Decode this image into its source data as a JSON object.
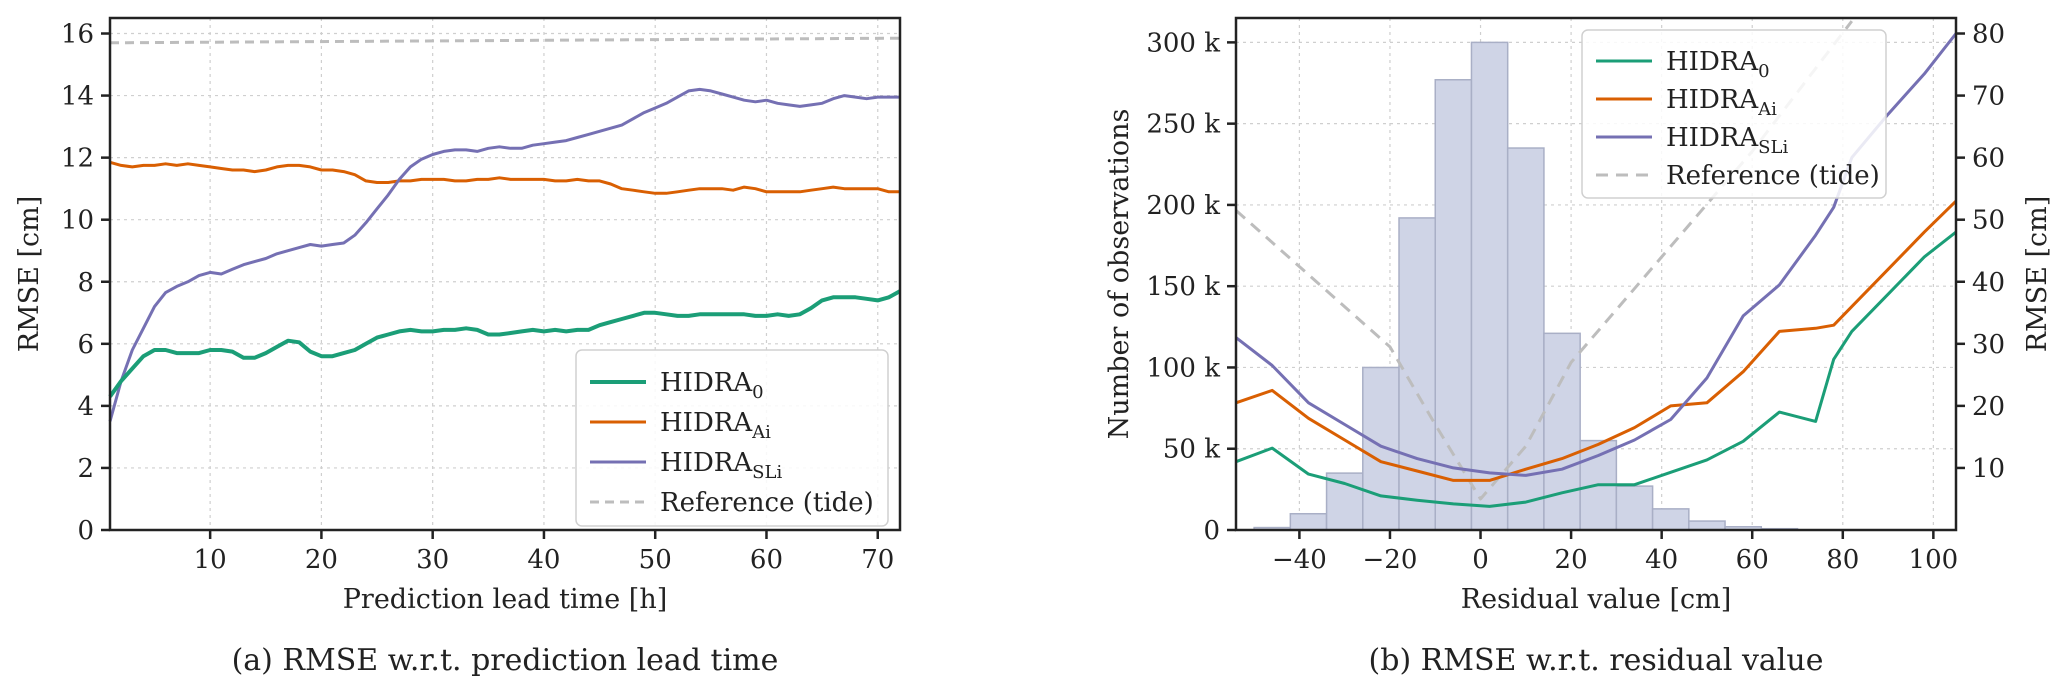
{
  "chart_data": [
    {
      "type": "line",
      "title": "",
      "caption": "(a) RMSE w.r.t. prediction lead time",
      "xlabel": "Prediction lead time [h]",
      "ylabel": "RMSE [cm]",
      "xlim": [
        1,
        72
      ],
      "ylim": [
        0,
        16.5
      ],
      "xticks": [
        10,
        20,
        30,
        40,
        50,
        60,
        70
      ],
      "yticks": [
        0,
        2,
        4,
        6,
        8,
        10,
        12,
        14,
        16
      ],
      "grid": true,
      "legend_position": "lower-right",
      "series": [
        {
          "name": "HIDRA",
          "sub": "0",
          "color": "#1b9e77",
          "width": 4,
          "dash": "",
          "x": [
            1,
            2,
            3,
            4,
            5,
            6,
            7,
            8,
            9,
            10,
            11,
            12,
            13,
            14,
            15,
            16,
            17,
            18,
            19,
            20,
            21,
            22,
            23,
            24,
            25,
            26,
            27,
            28,
            29,
            30,
            31,
            32,
            33,
            34,
            35,
            36,
            37,
            38,
            39,
            40,
            41,
            42,
            43,
            44,
            45,
            46,
            47,
            48,
            49,
            50,
            51,
            52,
            53,
            54,
            55,
            56,
            57,
            58,
            59,
            60,
            61,
            62,
            63,
            64,
            65,
            66,
            67,
            68,
            69,
            70,
            71,
            72
          ],
          "y": [
            4.3,
            4.8,
            5.2,
            5.6,
            5.8,
            5.8,
            5.7,
            5.7,
            5.7,
            5.8,
            5.8,
            5.75,
            5.55,
            5.55,
            5.7,
            5.9,
            6.1,
            6.05,
            5.75,
            5.6,
            5.6,
            5.7,
            5.8,
            6.0,
            6.2,
            6.3,
            6.4,
            6.45,
            6.4,
            6.4,
            6.45,
            6.45,
            6.5,
            6.45,
            6.3,
            6.3,
            6.35,
            6.4,
            6.45,
            6.4,
            6.45,
            6.4,
            6.45,
            6.45,
            6.6,
            6.7,
            6.8,
            6.9,
            7.0,
            7.0,
            6.95,
            6.9,
            6.9,
            6.95,
            6.95,
            6.95,
            6.95,
            6.95,
            6.9,
            6.9,
            6.95,
            6.9,
            6.95,
            7.15,
            7.4,
            7.5,
            7.5,
            7.5,
            7.45,
            7.4,
            7.5,
            7.7
          ]
        },
        {
          "name": "HIDRA",
          "sub": "Ai",
          "color": "#d95f02",
          "width": 3,
          "dash": "",
          "x": [
            1,
            2,
            3,
            4,
            5,
            6,
            7,
            8,
            9,
            10,
            11,
            12,
            13,
            14,
            15,
            16,
            17,
            18,
            19,
            20,
            21,
            22,
            23,
            24,
            25,
            26,
            27,
            28,
            29,
            30,
            31,
            32,
            33,
            34,
            35,
            36,
            37,
            38,
            39,
            40,
            41,
            42,
            43,
            44,
            45,
            46,
            47,
            48,
            49,
            50,
            51,
            52,
            53,
            54,
            55,
            56,
            57,
            58,
            59,
            60,
            61,
            62,
            63,
            64,
            65,
            66,
            67,
            68,
            69,
            70,
            71,
            72
          ],
          "y": [
            11.85,
            11.75,
            11.7,
            11.75,
            11.75,
            11.8,
            11.75,
            11.8,
            11.75,
            11.7,
            11.65,
            11.6,
            11.6,
            11.55,
            11.6,
            11.7,
            11.75,
            11.75,
            11.7,
            11.6,
            11.6,
            11.55,
            11.45,
            11.25,
            11.2,
            11.2,
            11.25,
            11.25,
            11.3,
            11.3,
            11.3,
            11.25,
            11.25,
            11.3,
            11.3,
            11.35,
            11.3,
            11.3,
            11.3,
            11.3,
            11.25,
            11.25,
            11.3,
            11.25,
            11.25,
            11.15,
            11.0,
            10.95,
            10.9,
            10.85,
            10.85,
            10.9,
            10.95,
            11.0,
            11.0,
            11.0,
            10.95,
            11.05,
            11.0,
            10.9,
            10.9,
            10.9,
            10.9,
            10.95,
            11.0,
            11.05,
            11.0,
            11.0,
            11.0,
            11.0,
            10.9,
            10.9
          ]
        },
        {
          "name": "HIDRA",
          "sub": "SLi",
          "color": "#7570b3",
          "width": 3,
          "dash": "",
          "x": [
            1,
            2,
            3,
            4,
            5,
            6,
            7,
            8,
            9,
            10,
            11,
            12,
            13,
            14,
            15,
            16,
            17,
            18,
            19,
            20,
            21,
            22,
            23,
            24,
            25,
            26,
            27,
            28,
            29,
            30,
            31,
            32,
            33,
            34,
            35,
            36,
            37,
            38,
            39,
            40,
            41,
            42,
            43,
            44,
            45,
            46,
            47,
            48,
            49,
            50,
            51,
            52,
            53,
            54,
            55,
            56,
            57,
            58,
            59,
            60,
            61,
            62,
            63,
            64,
            65,
            66,
            67,
            68,
            69,
            70,
            71,
            72
          ],
          "y": [
            3.5,
            4.8,
            5.8,
            6.5,
            7.2,
            7.65,
            7.85,
            8.0,
            8.2,
            8.3,
            8.25,
            8.4,
            8.55,
            8.65,
            8.75,
            8.9,
            9.0,
            9.1,
            9.2,
            9.15,
            9.2,
            9.25,
            9.5,
            9.9,
            10.35,
            10.8,
            11.3,
            11.7,
            11.95,
            12.1,
            12.2,
            12.25,
            12.25,
            12.2,
            12.3,
            12.35,
            12.3,
            12.3,
            12.4,
            12.45,
            12.5,
            12.55,
            12.65,
            12.75,
            12.85,
            12.95,
            13.05,
            13.25,
            13.45,
            13.6,
            13.75,
            13.95,
            14.15,
            14.2,
            14.15,
            14.05,
            13.95,
            13.85,
            13.8,
            13.85,
            13.75,
            13.7,
            13.65,
            13.7,
            13.75,
            13.9,
            14.0,
            13.95,
            13.9,
            13.95,
            13.95,
            13.95
          ]
        },
        {
          "name": "Reference (tide)",
          "sub": "",
          "color": "#bdbdbd",
          "width": 3,
          "dash": "9 6",
          "x": [
            1,
            72
          ],
          "y": [
            15.7,
            15.85
          ]
        }
      ]
    },
    {
      "type": "bar+line",
      "title": "",
      "caption": "(b) RMSE w.r.t. residual value",
      "xlabel": "Residual value [cm]",
      "ylabel_left": "Number of observations",
      "ylabel_right": "RMSE [cm]",
      "xlim": [
        -54,
        105
      ],
      "ylim_left": [
        0,
        315000
      ],
      "ylim_right": [
        0,
        82.5
      ],
      "xticks": [
        -40,
        -20,
        0,
        20,
        40,
        60,
        80,
        100
      ],
      "xtick_labels": [
        "−40",
        "−20",
        "0",
        "20",
        "40",
        "60",
        "80",
        "100"
      ],
      "yticks_left": [
        0,
        50000,
        100000,
        150000,
        200000,
        250000,
        300000
      ],
      "ytick_labels_left": [
        "0",
        "50 k",
        "100 k",
        "150 k",
        "200 k",
        "250 k",
        "300 k"
      ],
      "yticks_right": [
        10,
        20,
        30,
        40,
        50,
        60,
        70,
        80
      ],
      "grid": true,
      "legend_position": "top-right",
      "histogram": {
        "bin_width": 8,
        "bin_starts": [
          -50,
          -42,
          -34,
          -26,
          -18,
          -10,
          -2,
          6,
          14,
          22,
          30,
          38,
          46,
          54,
          62
        ],
        "values": [
          1500,
          10000,
          35000,
          100000,
          192000,
          277000,
          300000,
          235000,
          121000,
          55000,
          27000,
          13000,
          5500,
          2000,
          800
        ],
        "fill": "#cfd4e6",
        "stroke": "#a9afc6"
      },
      "series": [
        {
          "name": "HIDRA",
          "sub": "0",
          "color": "#1b9e77",
          "width": 3,
          "dash": "",
          "x": [
            -54,
            -46,
            -38,
            -30,
            -22,
            -14,
            -6,
            2,
            10,
            18,
            26,
            34,
            42,
            50,
            58,
            66,
            74,
            78,
            82,
            90,
            98,
            105
          ],
          "y": [
            11.0,
            13.2,
            9.0,
            7.5,
            5.5,
            4.8,
            4.2,
            3.8,
            4.5,
            6.0,
            7.3,
            7.3,
            9.3,
            11.3,
            14.3,
            19.0,
            17.5,
            27.5,
            32.0,
            38.0,
            44.0,
            48.0
          ]
        },
        {
          "name": "HIDRA",
          "sub": "Ai",
          "color": "#d95f02",
          "width": 3,
          "dash": "",
          "x": [
            -54,
            -46,
            -38,
            -30,
            -22,
            -14,
            -6,
            2,
            10,
            18,
            26,
            34,
            42,
            50,
            58,
            66,
            74,
            78,
            82,
            90,
            98,
            105
          ],
          "y": [
            20.5,
            22.5,
            18.0,
            14.5,
            11.0,
            9.5,
            8.0,
            8.0,
            9.8,
            11.5,
            13.8,
            16.5,
            20.0,
            20.5,
            25.5,
            32.0,
            32.5,
            33.0,
            36.0,
            42.0,
            48.0,
            53.0
          ]
        },
        {
          "name": "HIDRA",
          "sub": "SLi",
          "color": "#7570b3",
          "width": 3,
          "dash": "",
          "x": [
            -54,
            -46,
            -38,
            -30,
            -22,
            -14,
            -6,
            2,
            10,
            18,
            26,
            34,
            42,
            50,
            58,
            66,
            74,
            78,
            82,
            90,
            98,
            105
          ],
          "y": [
            31.0,
            26.5,
            20.5,
            17.0,
            13.5,
            11.5,
            10.0,
            9.2,
            8.8,
            9.8,
            12.0,
            14.5,
            17.8,
            24.5,
            34.5,
            39.5,
            47.5,
            52.0,
            60.0,
            67.0,
            73.5,
            80.0
          ]
        },
        {
          "name": "Reference (tide)",
          "sub": "",
          "color": "#bdbdbd",
          "width": 3,
          "dash": "12 8",
          "x": [
            -54,
            -20,
            -10,
            0,
            10,
            20,
            40,
            60,
            82
          ],
          "y": [
            51.5,
            29.5,
            17.0,
            5.0,
            13.5,
            27.0,
            44.0,
            61.0,
            82.0
          ]
        }
      ]
    }
  ]
}
